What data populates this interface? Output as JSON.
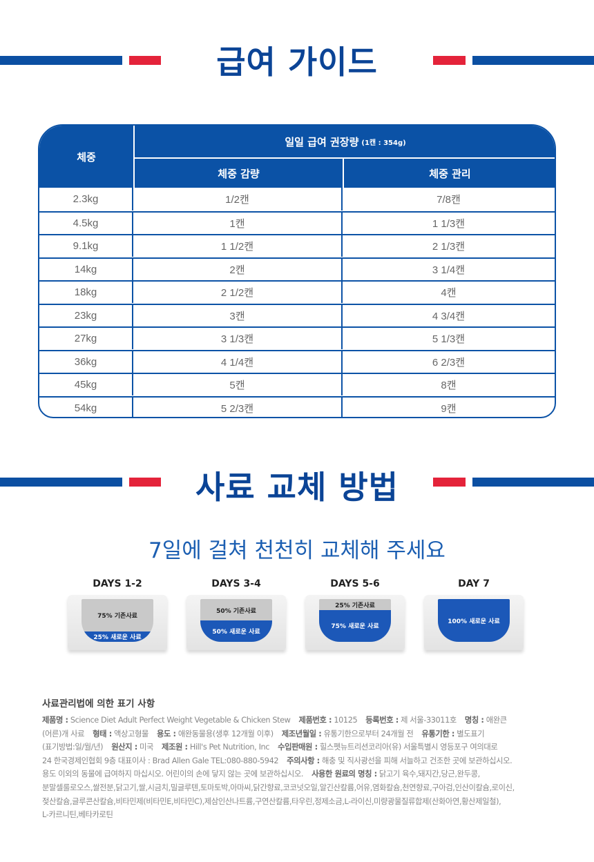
{
  "guide": {
    "title": "급여 가이드",
    "head": {
      "weight": "체중",
      "daily": "일일 급여 권장량",
      "daily_note": "(1캔 : 354g)",
      "loss": "체중 감량",
      "manage": "체중 관리"
    },
    "rows": [
      [
        "2.3kg",
        "1/2캔",
        "7/8캔"
      ],
      [
        "4.5kg",
        "1캔",
        "1 1/3캔"
      ],
      [
        "9.1kg",
        "1 1/2캔",
        "2 1/3캔"
      ],
      [
        "14kg",
        "2캔",
        "3 1/4캔"
      ],
      [
        "18kg",
        "2 1/2캔",
        "4캔"
      ],
      [
        "23kg",
        "3캔",
        "4 3/4캔"
      ],
      [
        "27kg",
        "3 1/3캔",
        "5 1/3캔"
      ],
      [
        "36kg",
        "4 1/4캔",
        "6 2/3캔"
      ],
      [
        "45kg",
        "5캔",
        "8캔"
      ],
      [
        "54kg",
        "5 2/3캔",
        "9캔"
      ]
    ]
  },
  "transition": {
    "title": "사료 교체 방법",
    "subtitle": "7일에 걸쳐 천천히 교체해 주세요",
    "steps": [
      {
        "day": "DAYS 1-2",
        "old": "75% 기존사료",
        "new": "25% 새로운 사료",
        "new_pct": 25
      },
      {
        "day": "DAYS 3-4",
        "old": "50% 기존사료",
        "new": "50% 새로운 사료",
        "new_pct": 50
      },
      {
        "day": "DAYS 5-6",
        "old": "25% 기존사료",
        "new": "75% 새로운 사료",
        "new_pct": 75
      },
      {
        "day": "DAY 7",
        "old": "",
        "new": "100% 새로운 사료",
        "new_pct": 100
      }
    ]
  },
  "notes": {
    "title": "사료관리법에 의한 표기 사항",
    "lines": [
      [
        [
          "제품명 :",
          " Science Diet Adult Perfect Weight Vegetable & Chicken Stew"
        ],
        [
          "제품번호 :",
          " 10125"
        ],
        [
          "등록번호 :",
          " 제 서울-33011호"
        ],
        [
          "명칭 :",
          " 애완큰"
        ]
      ],
      [
        [
          "",
          "(어른)개 사료"
        ],
        [
          "형태 :",
          " 액상고형물"
        ],
        [
          "용도 :",
          " 애완동물용(생후 12개월 이후)"
        ],
        [
          "제조년월일 :",
          " 유통기한으로부터 24개월 전"
        ],
        [
          "유통기한 :",
          " 별도표기"
        ]
      ],
      [
        [
          "",
          "(표기방법:일/월/년)"
        ],
        [
          "원산지 :",
          " 미국"
        ],
        [
          "제조원 :",
          " Hill's Pet Nutrition, Inc"
        ],
        [
          "수입판매원 :",
          " 힐스펫뉴트리션코리아(유)  서울특별시 영등포구 여의대로"
        ]
      ],
      [
        [
          "",
          "24 한국경제인협회 9층     대표이사 : Brad Allen Gale TEL:080-880-5942"
        ],
        [
          "주의사항 :",
          " 해충 및 직사광선을 피해 서늘하고 건조한 곳에 보관하십시오."
        ]
      ],
      [
        [
          "",
          "용도 이외의 동물에 급여하지 마십시오. 어린이의 손에 닿지 않는 곳에 보관하십시오."
        ],
        [
          "사용한 원료의 명칭 :",
          " 닭고기 육수,돼지간,당근,완두콩,"
        ]
      ],
      [
        [
          "",
          "분말셀룰로오스,쌀전분,닭고기,쌀,시금치,밀글루텐,토마토박,아마씨,닭간향료,코코넛오일,알긴산칼륨,어유,염화칼슘,천연향료,구아검,인산이칼슘,로이신,"
        ]
      ],
      [
        [
          "",
          "젖산칼슘,글루콘산칼슘,비타민제(비타민E,비타민C),제삼인산나트륨,구연산칼륨,타우린,정제소금,L-라이신,미량광물질류합제(산화아연,황산제일철),"
        ]
      ],
      [
        [
          "",
          "L-카르니틴,베타카로틴"
        ]
      ]
    ]
  },
  "colors": {
    "blue": "#0b52a6",
    "red": "#e4233a",
    "new_food": "#1c58b8",
    "old_food": "#c9c9c9"
  }
}
